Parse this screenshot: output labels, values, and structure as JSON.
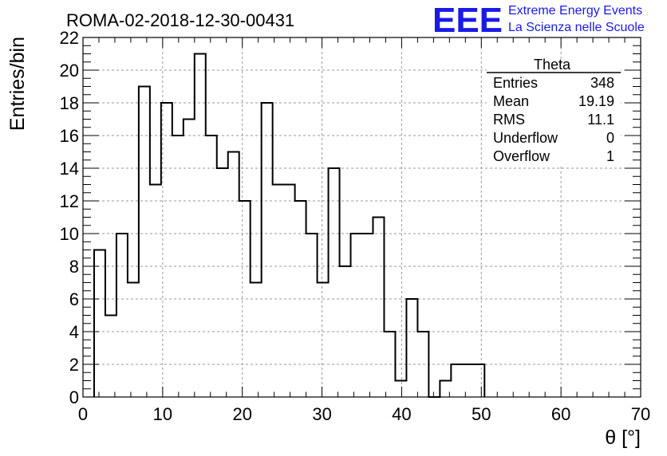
{
  "header": {
    "run_title": "ROMA-02-2018-12-30-00431",
    "logo_letters": "EEE",
    "logo_line1": "Extreme Energy Events",
    "logo_line2": "La Scienza nelle Scuole"
  },
  "stats_box": {
    "title": "Theta",
    "rows": [
      {
        "label": "Entries",
        "value": "348"
      },
      {
        "label": "Mean",
        "value": "19.19"
      },
      {
        "label": "RMS",
        "value": "11.1"
      },
      {
        "label": "Underflow",
        "value": "0"
      },
      {
        "label": "Overflow",
        "value": "1"
      }
    ]
  },
  "colors": {
    "histogram_line": "#000000",
    "grid": "#9a9a9a",
    "logo": "#1a1ae6"
  },
  "chart_data": {
    "type": "histogram",
    "xlabel": "θ [°]",
    "ylabel": "Entries/bin",
    "xlim": [
      0,
      70
    ],
    "ylim": [
      0,
      22
    ],
    "x_ticks": [
      0,
      10,
      20,
      30,
      40,
      50,
      60,
      70
    ],
    "y_ticks": [
      0,
      2,
      4,
      6,
      8,
      10,
      12,
      14,
      16,
      18,
      20,
      22
    ],
    "grid": true,
    "bin_width": 1.4,
    "bin_start": 1.4,
    "values": [
      9,
      5,
      10,
      7,
      19,
      13,
      18,
      16,
      17,
      21,
      16,
      14,
      15,
      12,
      7,
      18,
      13,
      13,
      12,
      10,
      7,
      14,
      8,
      10,
      10,
      11,
      4,
      1,
      6,
      4,
      0,
      1,
      2,
      2,
      2
    ]
  }
}
